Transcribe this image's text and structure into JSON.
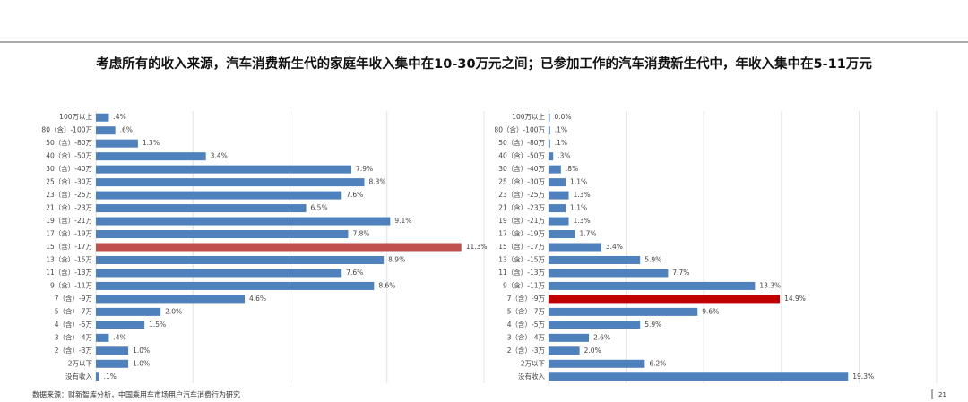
{
  "title": "考虑所有的收入来源，汽车消费新生代的家庭年收入集中在10-30万元之间；已参加工作的汽车消费新生代中，年收入集中在5-11万元",
  "source": "数据来源：财新智库分析，中国乘用车市场用户汽车消费行为研究",
  "page_number": "21",
  "chart_data": [
    {
      "type": "bar",
      "orientation": "horizontal",
      "categories": [
        "100万以上",
        "80（含）-100万",
        "50（含）-80万",
        "40（含）-50万",
        "30（含）-40万",
        "25（含）-30万",
        "23（含）-25万",
        "21（含）-23万",
        "19（含）-21万",
        "17（含）-19万",
        "15（含）-17万",
        "13（含）-15万",
        "11（含）-13万",
        "9（含）-11万",
        "7（含）-9万",
        "5（含）-7万",
        "4（含）-5万",
        "3（含）-4万",
        "2（含）-3万",
        "2万以下",
        "没有收入"
      ],
      "values": [
        0.4,
        0.6,
        1.3,
        3.4,
        7.9,
        8.3,
        7.6,
        6.5,
        9.1,
        7.8,
        11.3,
        8.9,
        7.6,
        8.6,
        4.6,
        2.0,
        1.5,
        0.4,
        1.0,
        1.0,
        0.1
      ],
      "value_labels": [
        ".4%",
        ".6%",
        "1.3%",
        "3.4%",
        "7.9%",
        "8.3%",
        "7.6%",
        "6.5%",
        "9.1%",
        "7.8%",
        "11.3%",
        "8.9%",
        "7.6%",
        "8.6%",
        "4.6%",
        "2.0%",
        "1.5%",
        ".4%",
        "1.0%",
        "1.0%",
        ".1%"
      ],
      "colors": [
        "#4f81bd",
        "#4f81bd",
        "#4f81bd",
        "#4f81bd",
        "#4f81bd",
        "#4f81bd",
        "#4f81bd",
        "#4f81bd",
        "#4f81bd",
        "#4f81bd",
        "#c0504d",
        "#4f81bd",
        "#4f81bd",
        "#4f81bd",
        "#4f81bd",
        "#4f81bd",
        "#4f81bd",
        "#4f81bd",
        "#4f81bd",
        "#4f81bd",
        "#4f81bd"
      ],
      "xlim": [
        0,
        12
      ],
      "xticks": [
        0,
        3,
        6,
        9,
        12
      ],
      "grid": true
    },
    {
      "type": "bar",
      "orientation": "horizontal",
      "categories": [
        "100万以上",
        "80（含）-100万",
        "50（含）-80万",
        "40（含）-50万",
        "30（含）-40万",
        "25（含）-30万",
        "23（含）-25万",
        "21（含）-23万",
        "19（含）-21万",
        "17（含）-19万",
        "15（含）-17万",
        "13（含）-15万",
        "11（含）-13万",
        "9（含）-11万",
        "7（含）-9万",
        "5（含）-7万",
        "4（含）-5万",
        "3（含）-4万",
        "2（含）-3万",
        "2万以下",
        "没有收入"
      ],
      "values": [
        0.0,
        0.1,
        0.1,
        0.3,
        0.8,
        1.1,
        1.3,
        1.1,
        1.3,
        1.7,
        3.4,
        5.9,
        7.7,
        13.3,
        14.9,
        9.6,
        5.9,
        2.6,
        2.0,
        6.2,
        19.3
      ],
      "value_labels": [
        "0.0%",
        ".1%",
        ".1%",
        ".3%",
        ".8%",
        "1.1%",
        "1.3%",
        "1.1%",
        "1.3%",
        "1.7%",
        "3.4%",
        "5.9%",
        "7.7%",
        "13.3%",
        "14.9%",
        "9.6%",
        "5.9%",
        "2.6%",
        "2.0%",
        "6.2%",
        "19.3%"
      ],
      "colors": [
        "#4f81bd",
        "#4f81bd",
        "#4f81bd",
        "#4f81bd",
        "#4f81bd",
        "#4f81bd",
        "#4f81bd",
        "#4f81bd",
        "#4f81bd",
        "#4f81bd",
        "#4f81bd",
        "#4f81bd",
        "#4f81bd",
        "#4f81bd",
        "#c00000",
        "#4f81bd",
        "#4f81bd",
        "#4f81bd",
        "#4f81bd",
        "#4f81bd",
        "#4f81bd"
      ],
      "xlim": [
        0,
        25
      ],
      "xticks": [
        0,
        5,
        10,
        15,
        20,
        25
      ],
      "grid": true
    }
  ]
}
